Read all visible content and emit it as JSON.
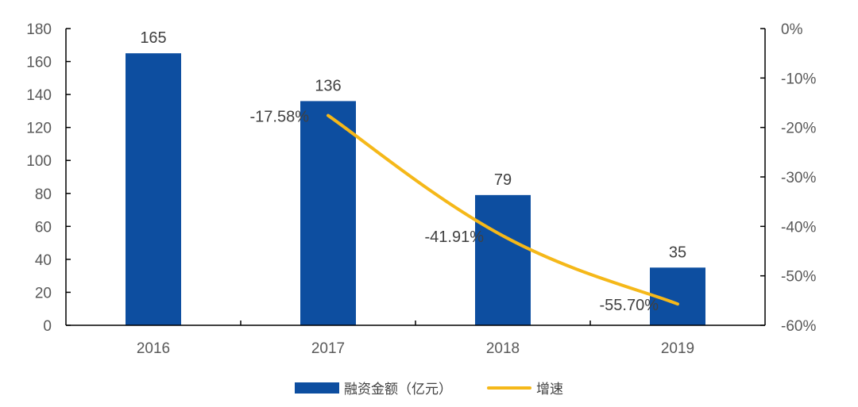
{
  "chart_data": {
    "type": "bar",
    "title": "",
    "categories": [
      "2016",
      "2017",
      "2018",
      "2019"
    ],
    "series": [
      {
        "name": "融资金额（亿元）",
        "type": "bar",
        "axis": "left",
        "color": "#0D4EA0",
        "values": [
          165,
          136,
          79,
          35
        ],
        "labels": [
          "165",
          "136",
          "79",
          "35"
        ]
      },
      {
        "name": "增速",
        "type": "line",
        "axis": "right",
        "color": "#F5B819",
        "values": [
          null,
          -17.58,
          -41.91,
          -55.7
        ],
        "labels": [
          "",
          "-17.58%",
          "-41.91%",
          "-55.70%"
        ]
      }
    ],
    "left_axis": {
      "label": "",
      "ylim": [
        0,
        180
      ],
      "ticks": [
        "0",
        "20",
        "40",
        "60",
        "80",
        "100",
        "120",
        "140",
        "160",
        "180"
      ]
    },
    "right_axis": {
      "label": "",
      "ylim": [
        -60,
        0
      ],
      "ticks": [
        "0%",
        "-10%",
        "-20%",
        "-30%",
        "-40%",
        "-50%",
        "-60%"
      ]
    },
    "xlabel": "",
    "grid": false,
    "legend_position": "bottom"
  },
  "legend": {
    "bar_label": "融资金额（亿元）",
    "line_label": "增速"
  }
}
